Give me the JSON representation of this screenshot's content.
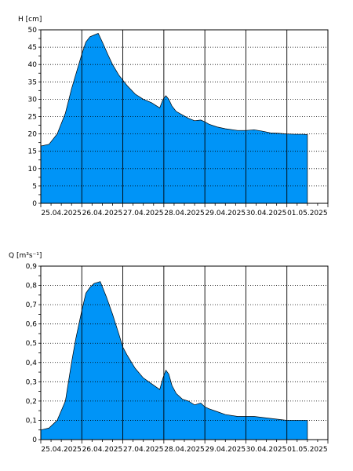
{
  "chart_data": [
    {
      "type": "area",
      "ylabel": "H [cm]",
      "ylim": [
        0,
        50
      ],
      "yticks": [
        0,
        5,
        10,
        15,
        20,
        25,
        30,
        35,
        40,
        45,
        50
      ],
      "ytick_labels": [
        "0",
        "5",
        "10",
        "15",
        "20",
        "25",
        "30",
        "35",
        "40",
        "45",
        "50"
      ],
      "xlim": [
        0,
        7.0
      ],
      "x_day_lines": [
        1,
        2,
        3,
        4,
        5,
        6
      ],
      "x_tick_positions": [
        0.5,
        1.5,
        2.5,
        3.5,
        4.5,
        5.5,
        6.5
      ],
      "x_tick_labels": [
        "25.04.2025",
        "26.04.2025",
        "27.04.2025",
        "28.04.2025",
        "29.04.2025",
        "30.04.2025",
        "01.05.2025"
      ],
      "grid": "horizontal dotted, daily vertical lines",
      "fill_color": "#0094f7",
      "series": [
        {
          "x": [
            0,
            0.2,
            0.4,
            0.6,
            0.75,
            0.85,
            1.0,
            1.1,
            1.2,
            1.3,
            1.4,
            1.5,
            1.65,
            1.75,
            1.9,
            2.0,
            2.1,
            2.3,
            2.5,
            2.7,
            2.9,
            2.98,
            3.05,
            3.12,
            3.2,
            3.3,
            3.45,
            3.6,
            3.75,
            3.9,
            4.0,
            4.1,
            4.3,
            4.5,
            4.8,
            5.0,
            5.2,
            5.4,
            5.6,
            5.8,
            6.0,
            6.2,
            6.4,
            6.5
          ],
          "values": [
            16.5,
            17.0,
            20.0,
            26.0,
            33.0,
            37.0,
            43.0,
            46.5,
            48.0,
            48.5,
            49.0,
            46.5,
            42.5,
            40.0,
            37.0,
            35.5,
            34.0,
            31.5,
            30.0,
            29.0,
            27.5,
            30.0,
            31.0,
            30.0,
            28.0,
            26.5,
            25.5,
            24.5,
            23.8,
            24.0,
            23.5,
            22.8,
            22.0,
            21.5,
            21.0,
            21.0,
            21.2,
            20.8,
            20.3,
            20.2,
            20.0,
            19.9,
            19.9,
            19.8
          ]
        }
      ]
    },
    {
      "type": "area",
      "ylabel": "Q [m³s⁻¹]",
      "ylim": [
        0,
        0.9
      ],
      "yticks": [
        0,
        0.1,
        0.2,
        0.3,
        0.4,
        0.5,
        0.6,
        0.7,
        0.8,
        0.9
      ],
      "ytick_labels": [
        "0",
        "0,1",
        "0,2",
        "0,3",
        "0,4",
        "0,5",
        "0,6",
        "0,7",
        "0,8",
        "0,9"
      ],
      "xlim": [
        0,
        7.0
      ],
      "x_day_lines": [
        1,
        2,
        3,
        4,
        5,
        6
      ],
      "x_tick_positions": [
        0.5,
        1.5,
        2.5,
        3.5,
        4.5,
        5.5,
        6.5
      ],
      "x_tick_labels": [
        "25.04.2025",
        "26.04.2025",
        "27.04.2025",
        "28.04.2025",
        "29.04.2025",
        "30.04.2025",
        "01.05.2025"
      ],
      "grid": "horizontal dotted, daily vertical lines",
      "fill_color": "#0094f7",
      "series": [
        {
          "x": [
            0,
            0.2,
            0.4,
            0.6,
            0.75,
            0.85,
            1.0,
            1.1,
            1.2,
            1.3,
            1.45,
            1.6,
            1.75,
            1.9,
            2.0,
            2.1,
            2.3,
            2.5,
            2.7,
            2.9,
            2.98,
            3.05,
            3.12,
            3.2,
            3.3,
            3.45,
            3.6,
            3.75,
            3.9,
            4.0,
            4.1,
            4.3,
            4.5,
            4.8,
            5.0,
            5.2,
            5.4,
            5.6,
            5.8,
            6.0,
            6.2,
            6.4,
            6.5
          ],
          "values": [
            0.05,
            0.06,
            0.1,
            0.2,
            0.4,
            0.52,
            0.67,
            0.76,
            0.79,
            0.81,
            0.82,
            0.74,
            0.65,
            0.55,
            0.48,
            0.44,
            0.37,
            0.32,
            0.29,
            0.26,
            0.32,
            0.36,
            0.34,
            0.28,
            0.24,
            0.21,
            0.2,
            0.18,
            0.19,
            0.17,
            0.16,
            0.145,
            0.13,
            0.12,
            0.12,
            0.12,
            0.115,
            0.11,
            0.105,
            0.1,
            0.1,
            0.1,
            0.1
          ]
        }
      ]
    }
  ]
}
